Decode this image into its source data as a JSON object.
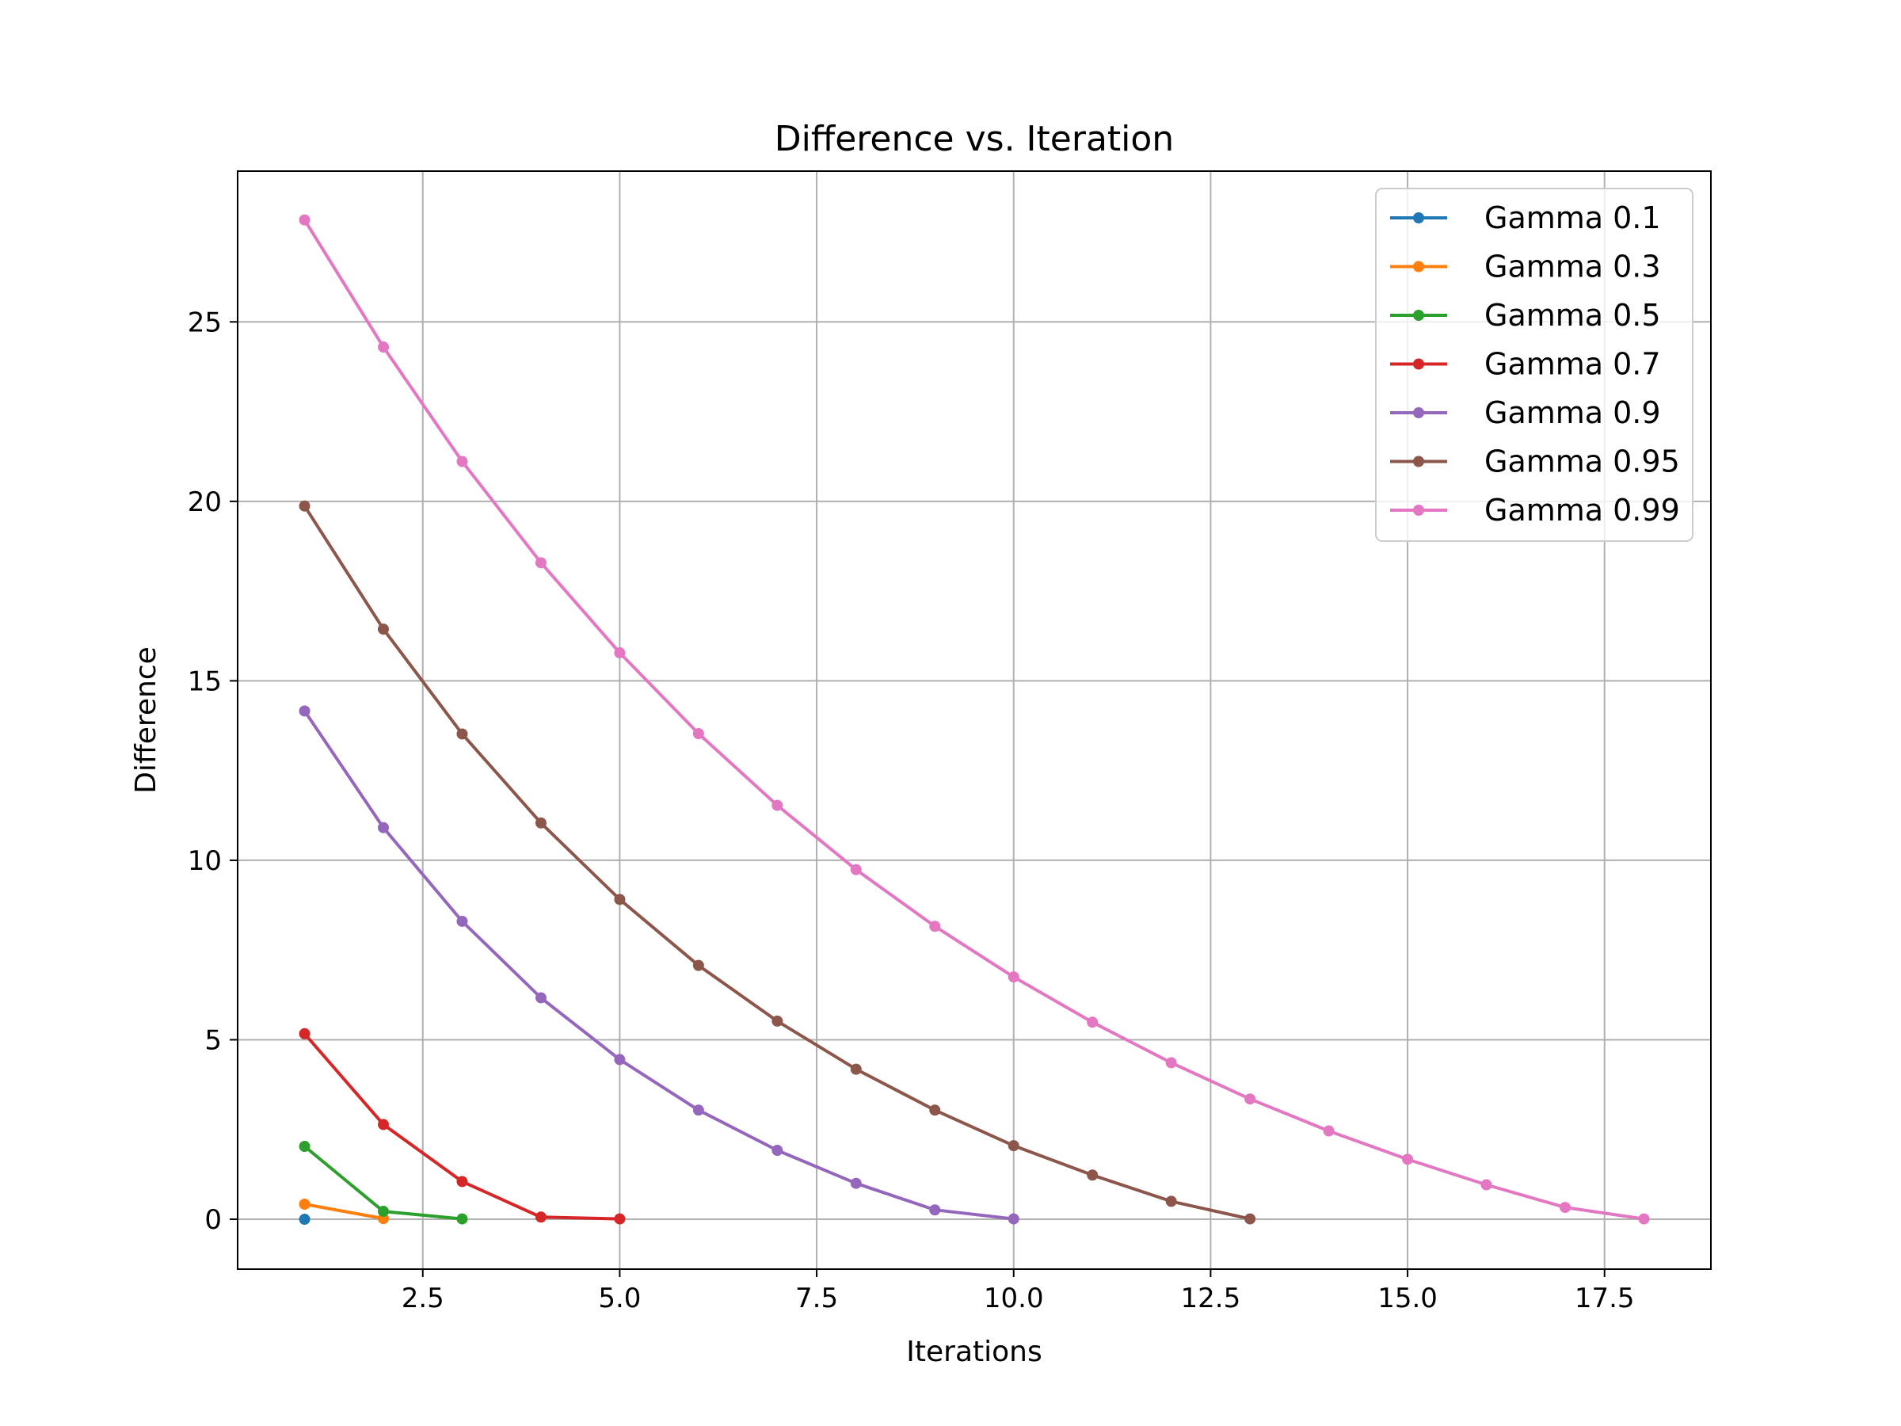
{
  "chart_data": {
    "type": "line",
    "title": "Difference vs. Iteration",
    "xlabel": "Iterations",
    "ylabel": "Difference",
    "xlim": [
      0.15,
      18.85
    ],
    "ylim": [
      -1.39,
      29.2
    ],
    "xticks": [
      2.5,
      5.0,
      7.5,
      10.0,
      12.5,
      15.0,
      17.5
    ],
    "xtick_labels": [
      "2.5",
      "5.0",
      "7.5",
      "10.0",
      "12.5",
      "15.0",
      "17.5"
    ],
    "yticks": [
      0,
      5,
      10,
      15,
      20,
      25
    ],
    "ytick_labels": [
      "0",
      "5",
      "10",
      "15",
      "20",
      "25"
    ],
    "grid": true,
    "legend_position": "top-right",
    "series": [
      {
        "name": "Gamma 0.1",
        "color": "#1f77b4",
        "x": [
          1
        ],
        "y": [
          0.0
        ]
      },
      {
        "name": "Gamma 0.3",
        "color": "#ff7f0e",
        "x": [
          1,
          2
        ],
        "y": [
          0.42,
          0.02
        ]
      },
      {
        "name": "Gamma 0.5",
        "color": "#2ca02c",
        "x": [
          1,
          2,
          3
        ],
        "y": [
          2.03,
          0.22,
          0.01
        ]
      },
      {
        "name": "Gamma 0.7",
        "color": "#d62728",
        "x": [
          1,
          2,
          3,
          4,
          5
        ],
        "y": [
          5.17,
          2.64,
          1.05,
          0.06,
          0.01
        ]
      },
      {
        "name": "Gamma 0.9",
        "color": "#9467bd",
        "x": [
          1,
          2,
          3,
          4,
          5,
          6,
          7,
          8,
          9,
          10
        ],
        "y": [
          14.16,
          10.91,
          8.3,
          6.17,
          4.45,
          3.04,
          1.92,
          1.0,
          0.26,
          0.01
        ]
      },
      {
        "name": "Gamma 0.95",
        "color": "#8c564b",
        "x": [
          1,
          2,
          3,
          4,
          5,
          6,
          7,
          8,
          9,
          10,
          11,
          12,
          13
        ],
        "y": [
          19.87,
          16.44,
          13.52,
          11.04,
          8.91,
          7.07,
          5.52,
          4.18,
          3.04,
          2.05,
          1.23,
          0.5,
          0.01
        ]
      },
      {
        "name": "Gamma 0.99",
        "color": "#e377c2",
        "x": [
          1,
          2,
          3,
          4,
          5,
          6,
          7,
          8,
          9,
          10,
          11,
          12,
          13,
          14,
          15,
          16,
          17,
          18
        ],
        "y": [
          27.84,
          24.3,
          21.11,
          18.29,
          15.78,
          13.53,
          11.53,
          9.74,
          8.16,
          6.75,
          5.49,
          4.36,
          3.35,
          2.46,
          1.67,
          0.96,
          0.33,
          0.01
        ]
      }
    ]
  }
}
